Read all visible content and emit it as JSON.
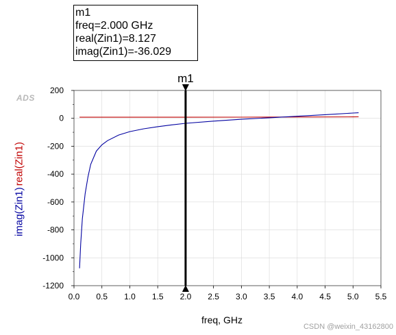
{
  "marker_readout": {
    "line1": "m1",
    "line2": "freq=2.000 GHz",
    "line3": "real(Zin1)=8.127",
    "line4": "imag(Zin1)=-36.029"
  },
  "logo_text": "ADS",
  "watermark": "CSDN @weixin_43162800",
  "chart_data": {
    "type": "line",
    "xlabel": "freq, GHz",
    "ylabel_series": [
      "imag(Zin1)",
      "real(Zin1)"
    ],
    "xlim": [
      0.0,
      5.5
    ],
    "ylim": [
      -1200,
      200
    ],
    "x_ticks": [
      "0.0",
      "0.5",
      "1.0",
      "1.5",
      "2.0",
      "2.5",
      "3.0",
      "3.5",
      "4.0",
      "4.5",
      "5.0",
      "5.5"
    ],
    "y_ticks": [
      "200",
      "0",
      "-200",
      "-400",
      "-600",
      "-800",
      "-1000",
      "-1200"
    ],
    "marker": {
      "name": "m1",
      "x": 2.0
    },
    "series": [
      {
        "name": "imag(Zin1)",
        "color": "#0000a0",
        "x": [
          0.1,
          0.12,
          0.15,
          0.2,
          0.25,
          0.3,
          0.4,
          0.5,
          0.6,
          0.8,
          1.0,
          1.25,
          1.5,
          1.75,
          2.0,
          2.5,
          3.0,
          3.5,
          4.0,
          4.5,
          5.0,
          5.1
        ],
        "y": [
          -1075,
          -900,
          -720,
          -540,
          -420,
          -330,
          -235,
          -190,
          -160,
          -120,
          -95,
          -75,
          -60,
          -47,
          -36,
          -20,
          -7,
          4,
          15,
          26,
          38,
          40
        ]
      },
      {
        "name": "real(Zin1)",
        "color": "#c00000",
        "x": [
          0.1,
          1.0,
          2.0,
          3.0,
          4.0,
          5.0,
          5.1
        ],
        "y": [
          8.0,
          8.06,
          8.127,
          8.6,
          9.5,
          10.5,
          10.7
        ]
      }
    ]
  }
}
